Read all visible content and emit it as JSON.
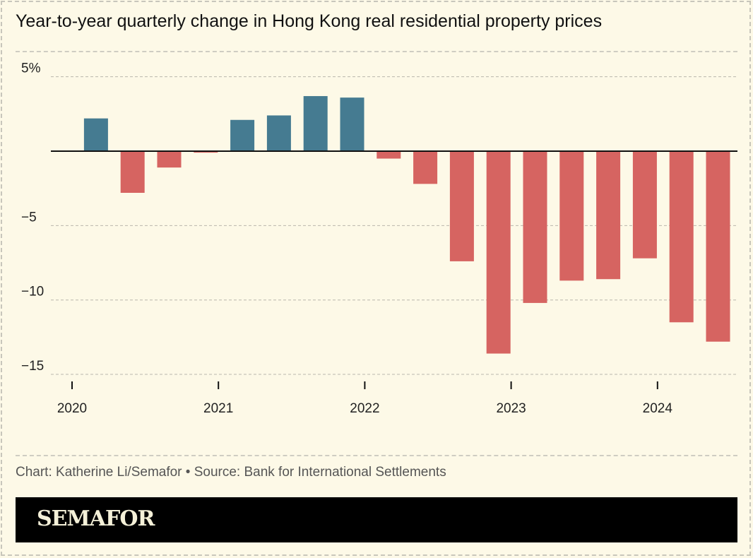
{
  "title": "Year-to-year quarterly change in Hong Kong real residential property prices",
  "credit": "Chart: Katherine Li/Semafor • Source: Bank for International Settlements",
  "logo": "SEMAFOR",
  "colors": {
    "positive": "#457b91",
    "negative": "#d66461",
    "background": "#fdf9e7"
  },
  "chart_data": {
    "type": "bar",
    "title": "Year-to-year quarterly change in Hong Kong real residential property prices",
    "categories": [
      "2020 Q1",
      "2020 Q2",
      "2020 Q3",
      "2020 Q4",
      "2021 Q1",
      "2021 Q2",
      "2021 Q3",
      "2021 Q4",
      "2022 Q1",
      "2022 Q2",
      "2022 Q3",
      "2022 Q4",
      "2023 Q1",
      "2023 Q2",
      "2023 Q3",
      "2023 Q4",
      "2024 Q1",
      "2024 Q2"
    ],
    "values": [
      2.2,
      -2.8,
      -1.1,
      -0.1,
      2.1,
      2.4,
      3.7,
      3.6,
      -0.5,
      -2.2,
      -7.4,
      -13.6,
      -10.2,
      -8.7,
      -8.6,
      -7.2,
      -11.5,
      -12.8
    ],
    "ylim": [
      -15,
      5
    ],
    "yticks": [
      {
        "value": 5,
        "label": "5%"
      },
      {
        "value": -5,
        "label": "−5"
      },
      {
        "value": -10,
        "label": "−10"
      },
      {
        "value": -15,
        "label": "−15"
      }
    ],
    "xticks": [
      "2020",
      "2021",
      "2022",
      "2023",
      "2024"
    ],
    "grid": true,
    "unit": "%"
  }
}
